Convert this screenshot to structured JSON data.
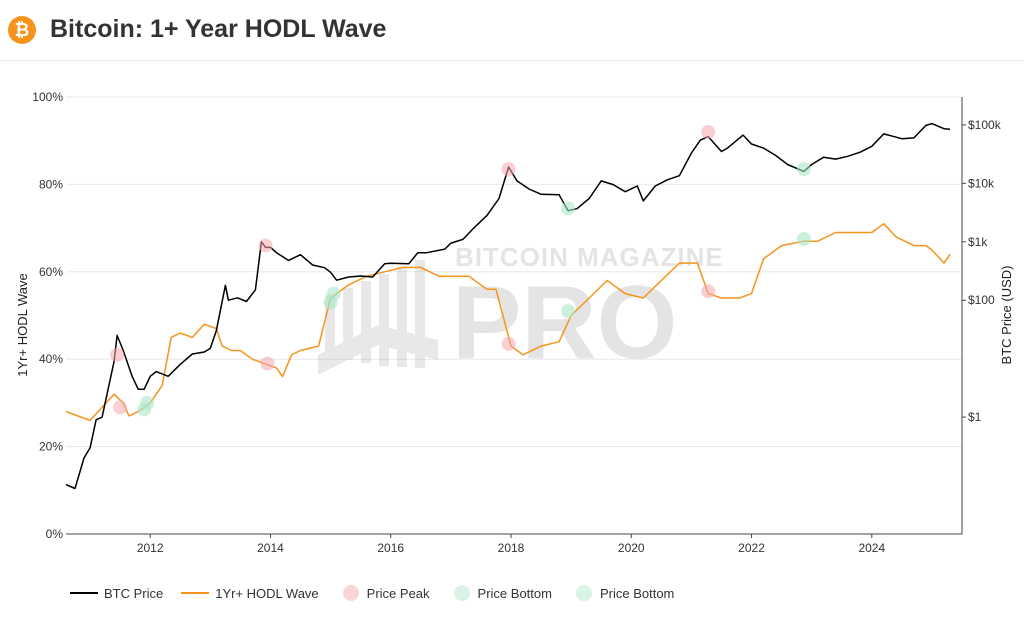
{
  "header": {
    "logo_glyph": "₿",
    "title": "Bitcoin: 1+ Year HODL Wave"
  },
  "watermark": {
    "line1": "BITCOIN MAGAZINE",
    "line2": "PRO"
  },
  "colors": {
    "price": "#000000",
    "hodl": "#f7931a",
    "peak": "#f4a7b0",
    "bottom": "#a8e6c8",
    "grid": "#e8e8e8",
    "axis": "#444444"
  },
  "legend": [
    {
      "label": "BTC Price",
      "kind": "line",
      "color": "#000000"
    },
    {
      "label": "1Yr+ HODL Wave",
      "kind": "line",
      "color": "#f7931a"
    },
    {
      "label": "Price Peak",
      "kind": "dot",
      "color": "#fcd5da"
    },
    {
      "label": "Price Bottom",
      "kind": "dot",
      "color": "#d9f3e6"
    },
    {
      "label": "Price Bottom",
      "kind": "dot",
      "color": "#d9f3e6"
    }
  ],
  "chart_data": {
    "type": "line",
    "title": "Bitcoin: 1+ Year HODL Wave",
    "ylabel_left": "1Yr+ HODL Wave",
    "ylabel_right": "BTC Price (USD)",
    "xlim": [
      2010.6,
      2025.5
    ],
    "ylim_left": [
      0,
      100
    ],
    "ylim_right_log": [
      0.01,
      300000
    ],
    "x_ticks": [
      2012,
      2014,
      2016,
      2018,
      2020,
      2022,
      2024
    ],
    "y_left_ticks": [
      0,
      20,
      40,
      60,
      80,
      100
    ],
    "y_left_tick_labels": [
      "0%",
      "20%",
      "40%",
      "60%",
      "80%",
      "100%"
    ],
    "y_right_ticks": [
      1,
      100,
      1000,
      10000,
      100000
    ],
    "y_right_tick_labels": [
      "$1",
      "$100",
      "$1k",
      "$10k",
      "$100k"
    ],
    "grid": true,
    "legend_position": "bottom",
    "series": [
      {
        "name": "BTC Price",
        "axis": "right",
        "x": [
          2010.6,
          2010.75,
          2010.9,
          2011.0,
          2011.1,
          2011.2,
          2011.3,
          2011.4,
          2011.45,
          2011.55,
          2011.7,
          2011.8,
          2011.9,
          2012.0,
          2012.1,
          2012.3,
          2012.5,
          2012.7,
          2012.9,
          2013.0,
          2013.1,
          2013.25,
          2013.3,
          2013.45,
          2013.6,
          2013.75,
          2013.85,
          2013.92,
          2014.0,
          2014.1,
          2014.3,
          2014.5,
          2014.7,
          2014.9,
          2015.0,
          2015.1,
          2015.3,
          2015.5,
          2015.7,
          2015.9,
          2016.0,
          2016.3,
          2016.45,
          2016.6,
          2016.9,
          2017.0,
          2017.2,
          2017.4,
          2017.6,
          2017.8,
          2017.96,
          2018.1,
          2018.3,
          2018.5,
          2018.8,
          2018.95,
          2019.1,
          2019.3,
          2019.5,
          2019.7,
          2019.9,
          2020.1,
          2020.2,
          2020.4,
          2020.6,
          2020.8,
          2021.0,
          2021.15,
          2021.28,
          2021.5,
          2021.6,
          2021.86,
          2022.0,
          2022.2,
          2022.4,
          2022.6,
          2022.87,
          2023.0,
          2023.2,
          2023.4,
          2023.6,
          2023.8,
          2024.0,
          2024.2,
          2024.5,
          2024.7,
          2024.9,
          2025.0,
          2025.2,
          2025.3
        ],
        "y": [
          0.07,
          0.06,
          0.2,
          0.3,
          0.9,
          1.0,
          3,
          9,
          25,
          14,
          5,
          3,
          3,
          5,
          6,
          5,
          8,
          12,
          13,
          15,
          30,
          180,
          100,
          110,
          95,
          150,
          1000,
          800,
          800,
          650,
          480,
          600,
          400,
          360,
          300,
          220,
          250,
          260,
          250,
          420,
          430,
          420,
          650,
          650,
          750,
          950,
          1100,
          1800,
          2800,
          5500,
          19000,
          11000,
          8000,
          6500,
          6400,
          3400,
          3700,
          5500,
          11000,
          9500,
          7200,
          9000,
          5000,
          9000,
          11500,
          13500,
          33000,
          55000,
          63000,
          35000,
          40000,
          67000,
          47000,
          40000,
          30000,
          21000,
          16000,
          21000,
          28000,
          26000,
          29000,
          34000,
          43000,
          70000,
          58000,
          60000,
          98000,
          105000,
          86000,
          84000
        ]
      },
      {
        "name": "1Yr+ HODL Wave",
        "axis": "left",
        "x": [
          2010.6,
          2010.8,
          2011.0,
          2011.2,
          2011.4,
          2011.55,
          2011.65,
          2011.8,
          2012.0,
          2012.2,
          2012.35,
          2012.5,
          2012.7,
          2012.9,
          2013.1,
          2013.2,
          2013.35,
          2013.5,
          2013.7,
          2013.9,
          2014.1,
          2014.2,
          2014.35,
          2014.5,
          2014.8,
          2015.0,
          2015.3,
          2015.6,
          2015.9,
          2016.2,
          2016.5,
          2016.8,
          2017.0,
          2017.3,
          2017.6,
          2017.75,
          2018.0,
          2018.2,
          2018.5,
          2018.8,
          2019.0,
          2019.3,
          2019.6,
          2019.9,
          2020.2,
          2020.5,
          2020.8,
          2021.1,
          2021.28,
          2021.5,
          2021.8,
          2022.0,
          2022.2,
          2022.5,
          2022.87,
          2023.1,
          2023.4,
          2023.7,
          2024.0,
          2024.2,
          2024.4,
          2024.7,
          2024.9,
          2025.0,
          2025.2,
          2025.3
        ],
        "y": [
          28,
          27,
          26,
          29,
          32,
          30,
          27,
          28,
          30,
          34,
          45,
          46,
          45,
          48,
          47,
          43,
          42,
          42,
          40,
          39,
          38,
          36,
          41,
          42,
          43,
          54,
          57,
          59,
          60,
          61,
          61,
          59,
          59,
          59,
          56,
          56,
          43,
          41,
          43,
          44,
          50,
          54,
          58,
          55,
          54,
          58,
          62,
          62,
          55,
          54,
          54,
          55,
          63,
          66,
          67,
          67,
          69,
          69,
          69,
          71,
          68,
          66,
          66,
          65,
          62,
          64
        ]
      }
    ],
    "price_peaks": [
      {
        "x": 2011.45,
        "y": 41
      },
      {
        "x": 2013.92,
        "y": 66
      },
      {
        "x": 2017.96,
        "y": 83.5
      },
      {
        "x": 2021.28,
        "y": 92
      },
      {
        "x": 2011.5,
        "y": 29
      },
      {
        "x": 2013.95,
        "y": 39
      },
      {
        "x": 2017.96,
        "y": 43.5
      },
      {
        "x": 2021.28,
        "y": 55.5
      }
    ],
    "price_bottoms": [
      {
        "x": 2011.9,
        "y": 28.5
      },
      {
        "x": 2015.05,
        "y": 55
      },
      {
        "x": 2018.95,
        "y": 74.5
      },
      {
        "x": 2022.87,
        "y": 83.5
      },
      {
        "x": 2011.95,
        "y": 30
      },
      {
        "x": 2015.0,
        "y": 53
      },
      {
        "x": 2018.95,
        "y": 51
      },
      {
        "x": 2022.87,
        "y": 67.5
      }
    ]
  }
}
